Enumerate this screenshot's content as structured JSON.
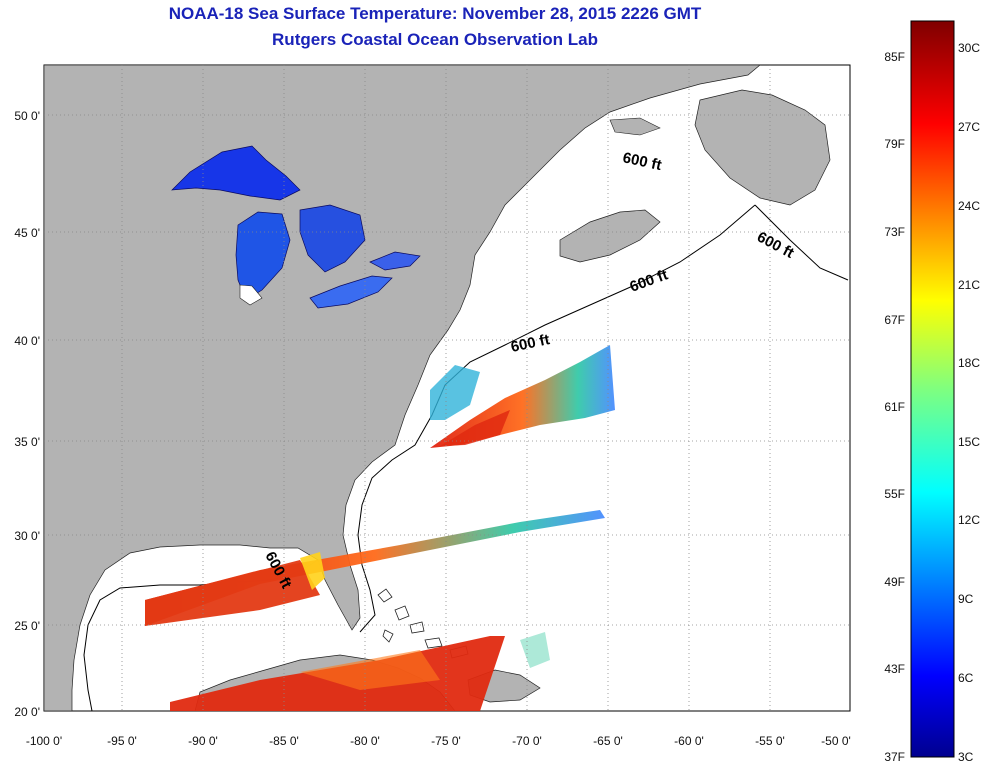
{
  "header": {
    "title": "NOAA-18 Sea Surface Temperature:  November 28, 2015 2226 GMT",
    "subtitle": "Rutgers Coastal Ocean Observation Lab"
  },
  "map": {
    "lon_range": [
      -100,
      -50
    ],
    "lat_range": [
      20,
      52.5
    ],
    "lon_ticks": [
      "-100 0'",
      "-95 0'",
      "-90 0'",
      "-85 0'",
      "-80 0'",
      "-75 0'",
      "-70 0'",
      "-65 0'",
      "-60 0'",
      "-55 0'",
      "-50 0'"
    ],
    "lat_ticks": [
      "50 0'",
      "45 0'",
      "40 0'",
      "35 0'",
      "30 0'",
      "25 0'",
      "20 0'"
    ],
    "contour_labels": [
      "600 ft",
      "600 ft",
      "600 ft",
      "600 ft",
      "600 ft"
    ],
    "land_color": "#b3b3b3",
    "grid": "dotted"
  },
  "colorbar": {
    "f_labels": [
      "85F",
      "79F",
      "73F",
      "67F",
      "61F",
      "55F",
      "49F",
      "43F",
      "37F"
    ],
    "c_labels": [
      "30C",
      "27C",
      "24C",
      "21C",
      "18C",
      "15C",
      "12C",
      "9C",
      "6C",
      "3C"
    ],
    "scale": "jet"
  }
}
